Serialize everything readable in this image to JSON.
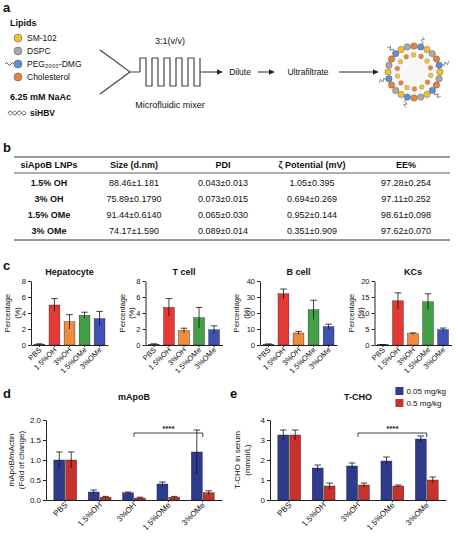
{
  "schematic": {
    "panel": "a",
    "legend_title": "Lipids",
    "lipids": [
      {
        "name": "SM-102",
        "color": "#f2c12e"
      },
      {
        "name": "DSPC",
        "color": "#a9a9a9"
      },
      {
        "name": "PEG₂₀₀₀-DMG",
        "color": "#5b8fd6"
      },
      {
        "name": "Cholesterol",
        "color": "#e8833a"
      }
    ],
    "buffer": "6.25 mM NaAc",
    "cargo": "siHBV",
    "ratio": "3:1(v/v)",
    "mixer": "Microfluidic mixer",
    "steps": [
      "Dilute",
      "Ultrafiltrate"
    ]
  },
  "table": {
    "panel": "b",
    "header": [
      "siApoB LNPs",
      "Size (d.nm)",
      "PDI",
      "ζ Potential (mV)",
      "EE%"
    ],
    "rows": [
      [
        "1.5% OH",
        "88.46±1.181",
        "0.043±0.013",
        "1.05±0.395",
        "97.28±0.254"
      ],
      [
        "3% OH",
        "75.89±0.1790",
        "0.073±0.015",
        "0.694±0.269",
        "97.11±0.252"
      ],
      [
        "1.5% OMe",
        "91.44±0.6140",
        "0.065±0.030",
        "0.952±0.144",
        "98.61±0.098"
      ],
      [
        "3% OMe",
        "74.17±1.590",
        "0.089±0.014",
        "0.351±0.909",
        "97.62±0.070"
      ]
    ]
  },
  "chart_data": [
    {
      "type": "bar",
      "panel": "c",
      "title": "Hepatocyte",
      "y_label": "Percentage (%)",
      "categories": [
        "PBS",
        "1.5%OH",
        "3%OH",
        "1.5%OMe",
        "3%OMe"
      ],
      "values": [
        0.1,
        5.0,
        2.9,
        3.7,
        3.3
      ],
      "errors": [
        0.05,
        0.8,
        0.9,
        0.4,
        0.9
      ],
      "colors": [
        "#7f7f7f",
        "#e53935",
        "#f08c3c",
        "#43a047",
        "#3f51b5"
      ],
      "ylim": [
        0,
        8
      ],
      "yticks": [
        0,
        2,
        4,
        6,
        8
      ]
    },
    {
      "type": "bar",
      "title": "T cell",
      "y_label": "Percentage (%)",
      "categories": [
        "PBS",
        "1.5%OH",
        "3%OH",
        "1.5%OMe",
        "3%OMe"
      ],
      "values": [
        0.1,
        4.7,
        1.8,
        3.4,
        1.9
      ],
      "errors": [
        0.05,
        1.1,
        0.3,
        1.3,
        0.5
      ],
      "colors": [
        "#7f7f7f",
        "#e53935",
        "#f08c3c",
        "#43a047",
        "#3f51b5"
      ],
      "ylim": [
        0,
        8
      ],
      "yticks": [
        0,
        2,
        4,
        6,
        8
      ]
    },
    {
      "type": "bar",
      "title": "B cell",
      "y_label": "Percentage (%)",
      "categories": [
        "PBS",
        "1.5%OH",
        "3%OH",
        "1.5%OMe",
        "3%OMe"
      ],
      "values": [
        0.5,
        32,
        7.5,
        22,
        11.5
      ],
      "errors": [
        0.2,
        3,
        1,
        6,
        1.5
      ],
      "colors": [
        "#7f7f7f",
        "#e53935",
        "#f08c3c",
        "#43a047",
        "#3f51b5"
      ],
      "ylim": [
        0,
        40
      ],
      "yticks": [
        0,
        10,
        20,
        30,
        40
      ]
    },
    {
      "type": "bar",
      "title": "KCs",
      "y_label": "Percentage (%)",
      "categories": [
        "PBS",
        "1.5%OH",
        "3%OH",
        "1.5%OMe",
        "3%OMe"
      ],
      "values": [
        0.1,
        13.8,
        3.5,
        13.5,
        4.8
      ],
      "errors": [
        0.05,
        2.5,
        0.3,
        2.5,
        0.5
      ],
      "colors": [
        "#7f7f7f",
        "#e53935",
        "#f08c3c",
        "#43a047",
        "#3f51b5"
      ],
      "ylim": [
        0,
        20
      ],
      "yticks": [
        0,
        5,
        10,
        15,
        20
      ]
    },
    {
      "type": "bar",
      "panel": "d",
      "title": "mApoB",
      "y_label": "mApoB/mActin (Fold of change)",
      "categories": [
        "PBS",
        "1.5%OH",
        "3%OH",
        "1.5%OMe",
        "3%OMe"
      ],
      "series": [
        {
          "color": "#2e3a8c",
          "values": [
            1.0,
            0.2,
            0.18,
            0.4,
            1.2
          ],
          "errors": [
            0.2,
            0.05,
            0.02,
            0.05,
            0.55
          ]
        },
        {
          "color": "#c8322d",
          "values": [
            1.0,
            0.07,
            0.05,
            0.07,
            0.18
          ],
          "errors": [
            0.2,
            0.02,
            0.02,
            0.02,
            0.05
          ]
        }
      ],
      "ylim": [
        0,
        2
      ],
      "yticks": [
        {
          "value": 0,
          "label": "0.0"
        },
        {
          "value": 0.5,
          "label": "0.5"
        },
        {
          "value": 1,
          "label": "1.0"
        },
        {
          "value": 1.5,
          "label": "1.5"
        },
        {
          "value": 2,
          "label": "2.0"
        }
      ],
      "annotations": [
        {
          "text": "****",
          "between": [
            "3%OH",
            "3%OMe"
          ]
        }
      ]
    },
    {
      "type": "bar",
      "panel": "e",
      "title": "T-CHO",
      "y_label": "T-CHO in serum (mmol/L)",
      "categories": [
        "PBS",
        "1.5%OH",
        "3%OH",
        "1.5%OMe",
        "3%OMe"
      ],
      "series": [
        {
          "name": "0.05 mg/kg",
          "color": "#2e3a8c",
          "values": [
            3.25,
            1.6,
            1.7,
            1.95,
            3.05
          ],
          "errors": [
            0.25,
            0.15,
            0.15,
            0.2,
            0.15
          ]
        },
        {
          "name": "0.5 mg/kg",
          "color": "#c8322d",
          "values": [
            3.25,
            0.7,
            0.75,
            0.7,
            1.0
          ],
          "errors": [
            0.25,
            0.15,
            0.1,
            0.05,
            0.15
          ]
        }
      ],
      "ylim": [
        0,
        4
      ],
      "yticks": [
        0,
        1,
        2,
        3,
        4
      ],
      "legend": "top-right",
      "annotations": [
        {
          "text": "****",
          "between": [
            "3%OH",
            "3%OMe"
          ]
        }
      ]
    }
  ]
}
